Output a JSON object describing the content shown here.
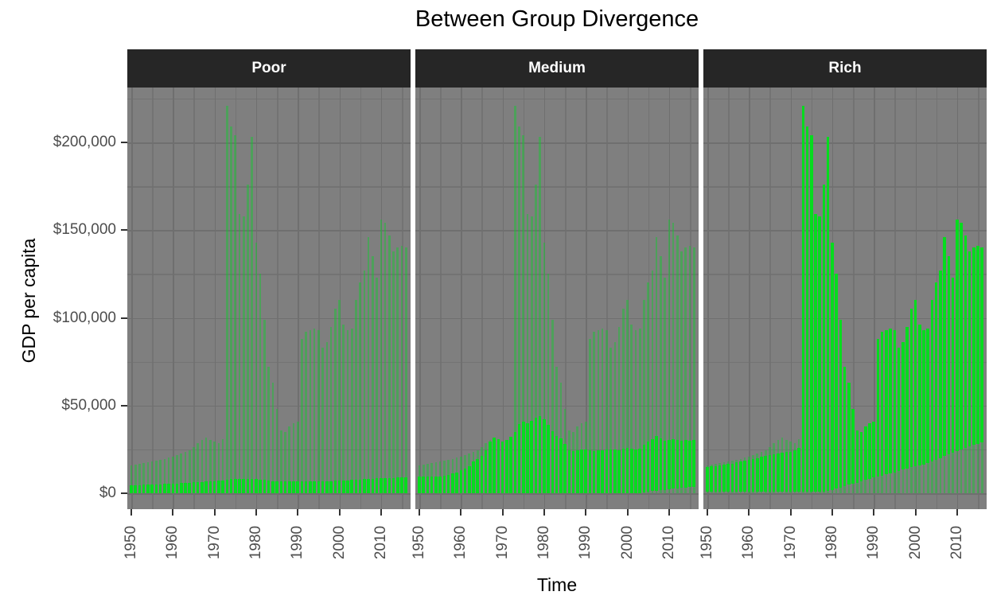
{
  "title": "Between Group Divergence",
  "y_axis_title": "GDP per capita",
  "x_axis_title": "Time",
  "colors": {
    "panel_background": "#7f7f7f",
    "gridline": "#6f6f6f",
    "strip_background": "#262626",
    "strip_text": "#ffffff",
    "group_bar_green": "#05DC1E",
    "range_bar_green": "rgba(10,210,40,0.42)",
    "axis_text": "#4d4d4d",
    "tick_mark": "#333333"
  },
  "y_ticks": {
    "labels": [
      "$0",
      "$50,000",
      "$100,000",
      "$150,000",
      "$200,000"
    ],
    "values_k": [
      0,
      50,
      100,
      150,
      200
    ],
    "minor_values_k": [
      25,
      75,
      125,
      175,
      225
    ]
  },
  "x_ticks": {
    "labels": [
      "1950",
      "1960",
      "1970",
      "1980",
      "1990",
      "2000",
      "2010"
    ],
    "values": [
      1950,
      1960,
      1970,
      1980,
      1990,
      2000,
      2010
    ],
    "minor_values": [
      1955,
      1965,
      1975,
      1985,
      1995,
      2005,
      2015
    ]
  },
  "chart_data": {
    "type": "bar",
    "title": "Between Group Divergence",
    "xlabel": "Time",
    "ylabel": "GDP per capita",
    "ylim_k": [
      0,
      231
    ],
    "grid": true,
    "legend": false,
    "facets_note": "3 facet panels; each year shows translucent bar = world min-max envelope (same in every facet) and bright green bar = that group's min-max range. Units: thousands of dollars GDP per capita.",
    "year_start": 1950,
    "year_end": 2016,
    "world_envelope_max_k": [
      16.0,
      16.4,
      16.8,
      17.2,
      17.6,
      18.1,
      18.6,
      19.1,
      19.7,
      20.3,
      20.9,
      21.7,
      22.5,
      23.4,
      24.6,
      26.5,
      28.5,
      30.5,
      31.8,
      30.5,
      29.5,
      28.5,
      31.0,
      221.0,
      209.0,
      204.0,
      159.0,
      158.0,
      176.0,
      203.0,
      143.0,
      125.0,
      99.0,
      72.0,
      63.0,
      48.0,
      36.0,
      35.0,
      38.0,
      40.0,
      41.0,
      88.0,
      92.0,
      93.0,
      94.0,
      93.0,
      83.0,
      86.0,
      95.0,
      105.0,
      110.0,
      96.0,
      93.0,
      94.0,
      110.0,
      120.0,
      127.0,
      146.0,
      135.0,
      123.0,
      156.0,
      154.0,
      147.0,
      138.0,
      140.0,
      141.0,
      140.0
    ],
    "facets": [
      {
        "label": "Poor",
        "group_max_k": [
          4.5,
          4.6,
          4.7,
          4.8,
          4.9,
          5.0,
          5.1,
          5.2,
          5.3,
          5.4,
          5.5,
          5.6,
          5.8,
          5.9,
          6.1,
          6.2,
          6.4,
          6.5,
          6.6,
          6.8,
          6.9,
          7.1,
          7.3,
          7.7,
          8.0,
          8.2,
          8.1,
          8.0,
          8.1,
          8.2,
          8.0,
          7.7,
          7.5,
          7.2,
          7.0,
          6.9,
          6.8,
          6.8,
          6.9,
          7.0,
          7.0,
          6.9,
          6.7,
          6.6,
          6.6,
          6.7,
          6.8,
          6.9,
          7.0,
          7.1,
          7.2,
          7.3,
          7.4,
          7.5,
          7.7,
          7.8,
          8.0,
          8.1,
          8.3,
          8.4,
          8.5,
          8.6,
          8.7,
          8.8,
          8.9,
          9.0,
          9.1
        ],
        "group_min_k": [
          0,
          0,
          0,
          0,
          0,
          0,
          0,
          0,
          0,
          0,
          0,
          0,
          0,
          0,
          0,
          0,
          0,
          0,
          0,
          0,
          0,
          0,
          0,
          0,
          0,
          0,
          0,
          0,
          0,
          0,
          0,
          0,
          0,
          0,
          0,
          0,
          0,
          0,
          0,
          0,
          0,
          0,
          0,
          0,
          0,
          0,
          0,
          0,
          0,
          0,
          0,
          0,
          0,
          0,
          0,
          0,
          0,
          0,
          0,
          0,
          0,
          0,
          0,
          0,
          0,
          0,
          0
        ]
      },
      {
        "label": "Medium",
        "group_max_k": [
          9.5,
          9.6,
          9.6,
          9.5,
          9.4,
          9.5,
          9.8,
          10.5,
          11.2,
          12.0,
          13.0,
          14.0,
          15.5,
          18.0,
          19.5,
          21.5,
          24.5,
          29.5,
          31.7,
          31.0,
          29.5,
          30.5,
          32.0,
          35.0,
          39.5,
          41.0,
          40.0,
          41.5,
          43.0,
          44.0,
          42.0,
          39.0,
          35.5,
          32.5,
          31.5,
          28.0,
          24.5,
          24.0,
          24.5,
          25.0,
          25.0,
          24.5,
          24.0,
          24.5,
          24.5,
          25.0,
          25.0,
          25.0,
          24.5,
          25.5,
          26.0,
          25.5,
          25.0,
          25.5,
          27.5,
          29.5,
          31.0,
          32.5,
          31.5,
          30.0,
          30.5,
          31.0,
          30.5,
          30.0,
          30.5,
          30.0,
          30.5
        ],
        "group_min_k": [
          0,
          0,
          0,
          0,
          0,
          0,
          0,
          0,
          0,
          0,
          0,
          0,
          0,
          0,
          0,
          0,
          0,
          0,
          0,
          0,
          0,
          0,
          0,
          0,
          0,
          0,
          0,
          0,
          0,
          0,
          0,
          0,
          0,
          0,
          0,
          0,
          0,
          0,
          0,
          0,
          0,
          0,
          0,
          0,
          0,
          0,
          0,
          0,
          0,
          0,
          0,
          0,
          0,
          0,
          0.5,
          0.8,
          1.2,
          1.5,
          1.8,
          2.0,
          2.3,
          2.5,
          2.8,
          3.0,
          3.3,
          3.5,
          3.8
        ]
      },
      {
        "label": "Rich",
        "group_max_k": [
          15.0,
          15.3,
          15.6,
          15.9,
          16.2,
          16.6,
          17.0,
          17.5,
          18.0,
          18.5,
          19.0,
          19.6,
          20.1,
          20.7,
          21.3,
          21.9,
          22.4,
          22.8,
          23.2,
          23.5,
          23.8,
          24.5,
          26.0,
          221.0,
          209.0,
          204.0,
          159.0,
          158.0,
          176.0,
          203.0,
          143.0,
          125.0,
          99.0,
          72.0,
          63.0,
          48.0,
          36.0,
          35.0,
          38.0,
          40.0,
          41.0,
          88.0,
          92.0,
          93.0,
          94.0,
          93.0,
          83.0,
          86.0,
          95.0,
          105.0,
          110.0,
          96.0,
          93.0,
          94.0,
          110.0,
          120.0,
          127.0,
          146.0,
          135.0,
          123.0,
          156.0,
          154.0,
          147.0,
          138.0,
          140.0,
          141.0,
          140.0
        ],
        "group_min_k": [
          0.8,
          0.8,
          0.8,
          0.8,
          0.8,
          0.8,
          0.8,
          0.8,
          0.8,
          0.8,
          0.8,
          0.8,
          0.8,
          0.8,
          0.8,
          0.8,
          0.8,
          0.8,
          0.8,
          0.8,
          0.8,
          0.8,
          0.8,
          0.8,
          0.8,
          0.8,
          0.8,
          0.8,
          0.8,
          1.5,
          2.0,
          2.5,
          3.2,
          4.0,
          4.8,
          5.4,
          6.0,
          6.8,
          7.5,
          8.2,
          9.0,
          9.6,
          10.2,
          10.8,
          11.4,
          12.0,
          12.7,
          13.4,
          14.1,
          14.8,
          15.5,
          16.0,
          16.5,
          17.2,
          18.0,
          19.0,
          20.0,
          21.2,
          22.4,
          23.2,
          24.0,
          25.0,
          26.0,
          26.8,
          27.5,
          28.2,
          28.8
        ]
      }
    ]
  }
}
